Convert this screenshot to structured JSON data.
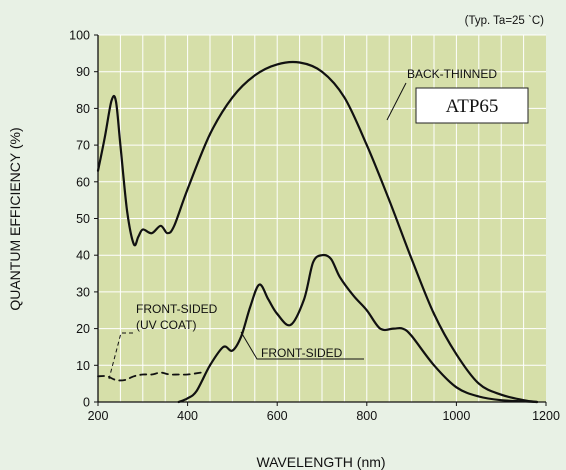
{
  "colors": {
    "page_background": "#e8f1e5",
    "plot_background": "#d6dfa9",
    "grid": "#ffffff",
    "curve": "#111111",
    "box_fill": "#ffffff"
  },
  "note": "(Typ. Ta=25 ˋC)",
  "label_box_text": "ATP65",
  "chart_data": {
    "type": "line",
    "title": "",
    "xlabel": "WAVELENGTH (nm)",
    "ylabel": "QUANTUM EFFICIENCY (%)",
    "xlim": [
      200,
      1200
    ],
    "ylim": [
      0,
      100
    ],
    "x_ticks": [
      200,
      400,
      600,
      800,
      1000,
      1200
    ],
    "x_tick_labels": [
      "200",
      "400",
      "600",
      "800",
      "1000",
      "1200"
    ],
    "y_ticks": [
      0,
      10,
      20,
      30,
      40,
      50,
      60,
      70,
      80,
      90,
      100
    ],
    "y_tick_labels": [
      "0",
      "10",
      "20",
      "30",
      "40",
      "50",
      "60",
      "70",
      "80",
      "90",
      "100"
    ],
    "grid": true,
    "legend": "none",
    "series": [
      {
        "name": "BACK-THINNED",
        "style": "solid",
        "x": [
          200,
          215,
          230,
          240,
          250,
          265,
          280,
          290,
          300,
          320,
          340,
          355,
          370,
          400,
          450,
          500,
          550,
          600,
          650,
          700,
          750,
          800,
          850,
          900,
          950,
          1000,
          1050,
          1100,
          1150,
          1180
        ],
        "y": [
          63,
          72,
          82,
          82,
          70,
          52,
          43,
          45,
          47,
          46,
          48,
          46,
          48,
          58,
          73,
          83,
          89,
          92,
          92.5,
          90,
          83,
          70,
          55,
          39,
          24,
          13,
          5,
          2,
          0.5,
          0
        ]
      },
      {
        "name": "FRONT-SIDED",
        "style": "solid",
        "x": [
          380,
          400,
          420,
          450,
          480,
          500,
          520,
          540,
          560,
          580,
          600,
          630,
          660,
          680,
          700,
          720,
          740,
          770,
          800,
          830,
          860,
          880,
          900,
          950,
          1000,
          1050,
          1100,
          1150,
          1180
        ],
        "y": [
          0,
          1,
          3,
          10,
          15,
          14,
          18,
          26,
          32,
          28,
          24,
          21,
          28,
          38,
          40,
          39,
          34,
          29,
          25,
          20,
          20,
          20,
          18,
          10,
          4,
          1.5,
          0.5,
          0.2,
          0
        ]
      },
      {
        "name": "FRONT-SIDED (UV COAT)",
        "style": "dashed",
        "x": [
          200,
          220,
          240,
          260,
          280,
          300,
          320,
          340,
          360,
          380,
          400,
          430
        ],
        "y": [
          7,
          7,
          6,
          6,
          7,
          7.5,
          7.5,
          8,
          7.5,
          7.5,
          7.5,
          8
        ]
      }
    ],
    "annotations": [
      {
        "text": "BACK-THINNED",
        "series": "BACK-THINNED"
      },
      {
        "text": "FRONT-SIDED",
        "series": "FRONT-SIDED"
      },
      {
        "text": [
          "FRONT-SIDED",
          "(UV COAT)"
        ],
        "series": "FRONT-SIDED (UV COAT)"
      }
    ]
  }
}
